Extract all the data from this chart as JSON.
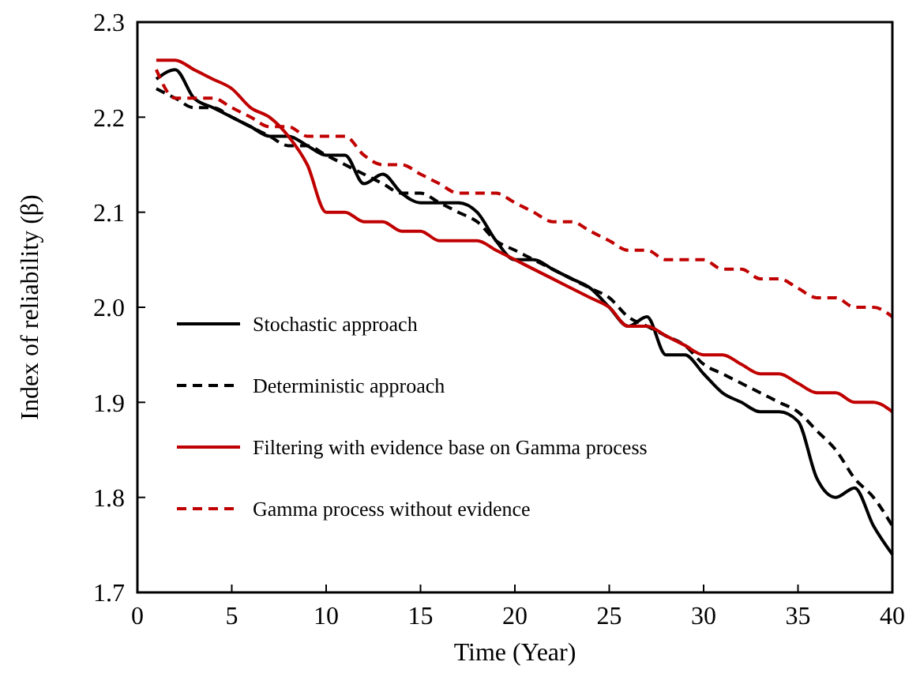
{
  "chart_data": {
    "type": "line",
    "xlabel": "Time (Year)",
    "ylabel": "Index of reliability (β)",
    "x": [
      1,
      2,
      3,
      4,
      5,
      6,
      7,
      8,
      9,
      10,
      11,
      12,
      13,
      14,
      15,
      16,
      17,
      18,
      19,
      20,
      21,
      22,
      23,
      24,
      25,
      26,
      27,
      28,
      29,
      30,
      31,
      32,
      33,
      34,
      35,
      36,
      37,
      38,
      39,
      40
    ],
    "xlim": [
      0,
      40
    ],
    "xticks": [
      0,
      5,
      10,
      15,
      20,
      25,
      30,
      35,
      40
    ],
    "ylim": [
      1.7,
      2.3
    ],
    "yticks": [
      {
        "value": 1.7,
        "label": "1.7"
      },
      {
        "value": 1.8,
        "label": "1.8"
      },
      {
        "value": 1.9,
        "label": "1.9"
      },
      {
        "value": 2.0,
        "label": "2.0"
      },
      {
        "value": 2.1,
        "label": "2.1"
      },
      {
        "value": 2.2,
        "label": "2.2"
      },
      {
        "value": 2.3,
        "label": "2.3"
      }
    ],
    "grid": false,
    "legend": "left",
    "marker": "none",
    "series": [
      {
        "name": "Stochastic approach",
        "color": "#000000",
        "line_style": "solid",
        "values": [
          2.24,
          2.25,
          2.22,
          2.21,
          2.2,
          2.19,
          2.18,
          2.18,
          2.17,
          2.16,
          2.16,
          2.13,
          2.14,
          2.12,
          2.11,
          2.11,
          2.11,
          2.1,
          2.07,
          2.05,
          2.05,
          2.04,
          2.03,
          2.02,
          2.0,
          1.98,
          1.99,
          1.95,
          1.95,
          1.93,
          1.91,
          1.9,
          1.89,
          1.89,
          1.88,
          1.82,
          1.8,
          1.81,
          1.77,
          1.74
        ]
      },
      {
        "name": "Deterministic approach",
        "color": "#000000",
        "line_style": "dashed",
        "values": [
          2.23,
          2.22,
          2.21,
          2.21,
          2.2,
          2.19,
          2.18,
          2.17,
          2.17,
          2.16,
          2.15,
          2.14,
          2.13,
          2.12,
          2.12,
          2.11,
          2.1,
          2.09,
          2.07,
          2.06,
          2.05,
          2.04,
          2.03,
          2.02,
          2.01,
          1.99,
          1.98,
          1.97,
          1.96,
          1.94,
          1.93,
          1.92,
          1.91,
          1.9,
          1.89,
          1.87,
          1.85,
          1.82,
          1.8,
          1.77
        ]
      },
      {
        "name": "Filtering with evidence base on Gamma process",
        "color": "#c00000",
        "line_style": "solid",
        "values": [
          2.26,
          2.26,
          2.25,
          2.24,
          2.23,
          2.21,
          2.2,
          2.18,
          2.15,
          2.1,
          2.1,
          2.09,
          2.09,
          2.08,
          2.08,
          2.07,
          2.07,
          2.07,
          2.06,
          2.05,
          2.04,
          2.03,
          2.02,
          2.01,
          2.0,
          1.98,
          1.98,
          1.97,
          1.96,
          1.95,
          1.95,
          1.94,
          1.93,
          1.93,
          1.92,
          1.91,
          1.91,
          1.9,
          1.9,
          1.89
        ]
      },
      {
        "name": "Gamma process without evidence",
        "color": "#c00000",
        "line_style": "dashed",
        "values": [
          2.25,
          2.22,
          2.22,
          2.22,
          2.21,
          2.2,
          2.19,
          2.19,
          2.18,
          2.18,
          2.18,
          2.16,
          2.15,
          2.15,
          2.14,
          2.13,
          2.12,
          2.12,
          2.12,
          2.11,
          2.1,
          2.09,
          2.09,
          2.08,
          2.07,
          2.06,
          2.06,
          2.05,
          2.05,
          2.05,
          2.04,
          2.04,
          2.03,
          2.03,
          2.02,
          2.01,
          2.01,
          2.0,
          2.0,
          1.99
        ]
      }
    ]
  }
}
